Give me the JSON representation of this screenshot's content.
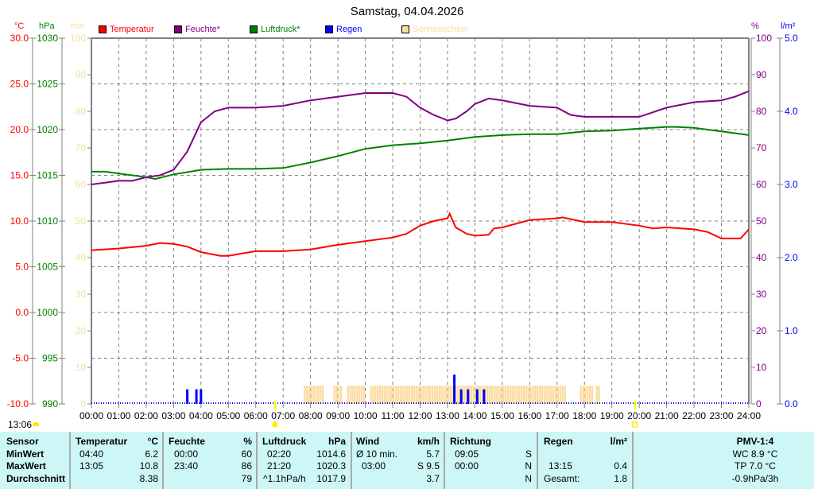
{
  "header": {
    "title": "Samstag, 04.04.2026"
  },
  "axes": {
    "temperature": {
      "unit": "°C",
      "ticks": [
        "30.0",
        "25.0",
        "20.0",
        "15.0",
        "10.0",
        "5.0",
        "0.0",
        "-5.0",
        "-10.0"
      ],
      "color": "#ff0000"
    },
    "pressure": {
      "unit": "hPa",
      "ticks": [
        "1030",
        "1025",
        "1020",
        "1015",
        "1010",
        "1005",
        "1000",
        "995",
        "990"
      ],
      "color": "#008000"
    },
    "sunshine": {
      "unit": "min",
      "ticks": [
        "100",
        "90",
        "80",
        "70",
        "60",
        "50",
        "40",
        "30",
        "20",
        "10",
        "0"
      ],
      "color": "#f8dca0"
    },
    "humidity": {
      "unit": "%",
      "ticks": [
        "100",
        "90",
        "80",
        "70",
        "60",
        "50",
        "40",
        "30",
        "20",
        "10",
        "0"
      ],
      "color": "#800080"
    },
    "rain": {
      "unit": "l/m²",
      "ticks": [
        "5.0",
        "4.0",
        "3.0",
        "2.0",
        "1.0",
        "0.0"
      ],
      "color": "#0000ff"
    },
    "x_ticks": [
      "00:00",
      "01:00",
      "02:00",
      "03:00",
      "04:00",
      "05:00",
      "06:00",
      "07:00",
      "08:00",
      "09:00",
      "10:00",
      "11:00",
      "12:00",
      "13:00",
      "14:00",
      "15:00",
      "16:00",
      "17:00",
      "18:00",
      "19:00",
      "20:00",
      "21:00",
      "22:00",
      "23:00",
      "24:00"
    ]
  },
  "legend": [
    {
      "label": "Temperatur",
      "color": "#ff0000"
    },
    {
      "label": "Feuchte*",
      "color": "#800080"
    },
    {
      "label": "Luftdruck*",
      "color": "#008000"
    },
    {
      "label": "Regen",
      "color": "#0000ff"
    },
    {
      "label": "Sonnenschein",
      "color": "#fcdca0"
    }
  ],
  "sun": {
    "sunrise": "06:42",
    "sunset": "19:50",
    "current_time": "13:06"
  },
  "chart_data": {
    "type": "line",
    "title": "Samstag, 04.04.2026",
    "xlabel": "",
    "x_range": [
      "00:00",
      "24:00"
    ],
    "grid": true,
    "legend_position": "top",
    "series": [
      {
        "name": "Temperatur",
        "unit": "°C",
        "axis": "left",
        "ylim": [
          -10,
          30
        ],
        "x": [
          0,
          1,
          2,
          2.5,
          3,
          3.5,
          4,
          4.7,
          5,
          6,
          7,
          8,
          9,
          10,
          11,
          11.5,
          12,
          12.5,
          13,
          13.08,
          13.3,
          13.7,
          14,
          14.5,
          14.7,
          15,
          16,
          17,
          17.2,
          18,
          19,
          20,
          20.5,
          21,
          22,
          22.5,
          23,
          23.7,
          24
        ],
        "values": [
          6.8,
          7.0,
          7.3,
          7.6,
          7.5,
          7.2,
          6.6,
          6.2,
          6.2,
          6.7,
          6.7,
          6.9,
          7.4,
          7.8,
          8.2,
          8.6,
          9.5,
          10.0,
          10.3,
          10.8,
          9.3,
          8.6,
          8.4,
          8.5,
          9.2,
          9.3,
          10.1,
          10.3,
          10.4,
          9.9,
          9.9,
          9.5,
          9.2,
          9.3,
          9.1,
          8.8,
          8.1,
          8.1,
          9.1
        ]
      },
      {
        "name": "Feuchte*",
        "unit": "%",
        "axis": "right",
        "ylim": [
          0,
          100
        ],
        "x": [
          0,
          0.5,
          1,
          1.5,
          2,
          2.5,
          3,
          3.5,
          4,
          4.5,
          5,
          6,
          7,
          8,
          9,
          10,
          11,
          11.5,
          12,
          12.5,
          13,
          13.3,
          13.7,
          14,
          14.5,
          15,
          16,
          17,
          17.5,
          18,
          19,
          20,
          21,
          22,
          23,
          23.5,
          24
        ],
        "values": [
          60,
          60.5,
          61,
          61,
          62,
          62.5,
          64,
          69,
          77,
          80,
          81,
          81,
          81.5,
          83,
          84,
          85,
          85,
          84,
          81,
          79,
          77.5,
          78,
          80,
          82,
          83.5,
          83,
          81.5,
          81,
          79,
          78.5,
          78.5,
          78.5,
          81,
          82.5,
          83,
          84,
          85.5
        ]
      },
      {
        "name": "Luftdruck*",
        "unit": "hPa",
        "axis": "left",
        "ylim": [
          990,
          1030
        ],
        "x": [
          0,
          0.5,
          1,
          2,
          2.33,
          3,
          4,
          5,
          6,
          7,
          8,
          9,
          10,
          11,
          12,
          13,
          14,
          15,
          16,
          17,
          18,
          19,
          20,
          21,
          21.33,
          22,
          23,
          24
        ],
        "values": [
          1015.4,
          1015.4,
          1015.2,
          1014.8,
          1014.6,
          1015.1,
          1015.6,
          1015.7,
          1015.7,
          1015.8,
          1016.4,
          1017.1,
          1017.9,
          1018.3,
          1018.5,
          1018.8,
          1019.2,
          1019.4,
          1019.5,
          1019.5,
          1019.8,
          1019.9,
          1020.1,
          1020.3,
          1020.3,
          1020.2,
          1019.8,
          1019.4
        ]
      },
      {
        "name": "Regen",
        "unit": "l/m²",
        "axis": "right2",
        "ylim": [
          0,
          5
        ],
        "type": "bar",
        "x": [
          "03:30",
          "03:50",
          "04:00",
          "13:15",
          "13:30",
          "13:45",
          "14:05",
          "14:20"
        ],
        "values": [
          0.2,
          0.2,
          0.2,
          0.4,
          0.2,
          0.2,
          0.2,
          0.2
        ]
      },
      {
        "name": "Sonnenschein",
        "unit": "min",
        "axis": "left3",
        "ylim": [
          0,
          100
        ],
        "type": "bar",
        "segments": [
          [
            "07:45",
            "08:30"
          ],
          [
            "08:50",
            "09:10"
          ],
          [
            "09:20",
            "10:00"
          ],
          [
            "10:10",
            "13:00"
          ],
          [
            "13:00",
            "17:20"
          ],
          [
            "17:50",
            "18:15"
          ],
          [
            "18:25",
            "18:35"
          ]
        ],
        "values_min_per_interval": 10
      }
    ]
  },
  "stats_table": {
    "sensor": {
      "header": "Sensor",
      "rows": [
        "MinWert",
        "MaxWert",
        "Durchschnitt"
      ]
    },
    "temperature": {
      "header": "Temperatur",
      "unit": "°C",
      "times": [
        "04:40",
        "13:05",
        ""
      ],
      "values": [
        "6.2",
        "10.8",
        "8.38"
      ]
    },
    "humidity": {
      "header": "Feuchte",
      "unit": "%",
      "times": [
        "00:00",
        "23:40",
        ""
      ],
      "values": [
        "60",
        "86",
        "79"
      ]
    },
    "pressure": {
      "header": "Luftdruck",
      "unit": "hPa",
      "times": [
        "02:20",
        "21:20",
        "^1.1hPa/h"
      ],
      "values": [
        "1014.6",
        "1020.3",
        "1017.9"
      ]
    },
    "wind": {
      "header": "Wind",
      "unit": "km/h",
      "labels": [
        "Ø 10 min.",
        "03:00",
        ""
      ],
      "values": [
        "5.7",
        "S 9.5",
        "3.7"
      ]
    },
    "direction": {
      "header": "Richtung",
      "times": [
        "09:05",
        "00:00",
        ""
      ],
      "values": [
        "S",
        "N",
        "N"
      ]
    },
    "rain": {
      "header": "Regen",
      "unit": "l/m²",
      "labels": [
        "",
        "13:15",
        "Gesamt:"
      ],
      "values": [
        "",
        "0.4",
        "1.8"
      ]
    },
    "pmv": {
      "header": "PMV-1:4",
      "rows": [
        "WC 8.9 °C",
        "TP 7.0 °C",
        "-0.9hPa/3h"
      ]
    }
  }
}
